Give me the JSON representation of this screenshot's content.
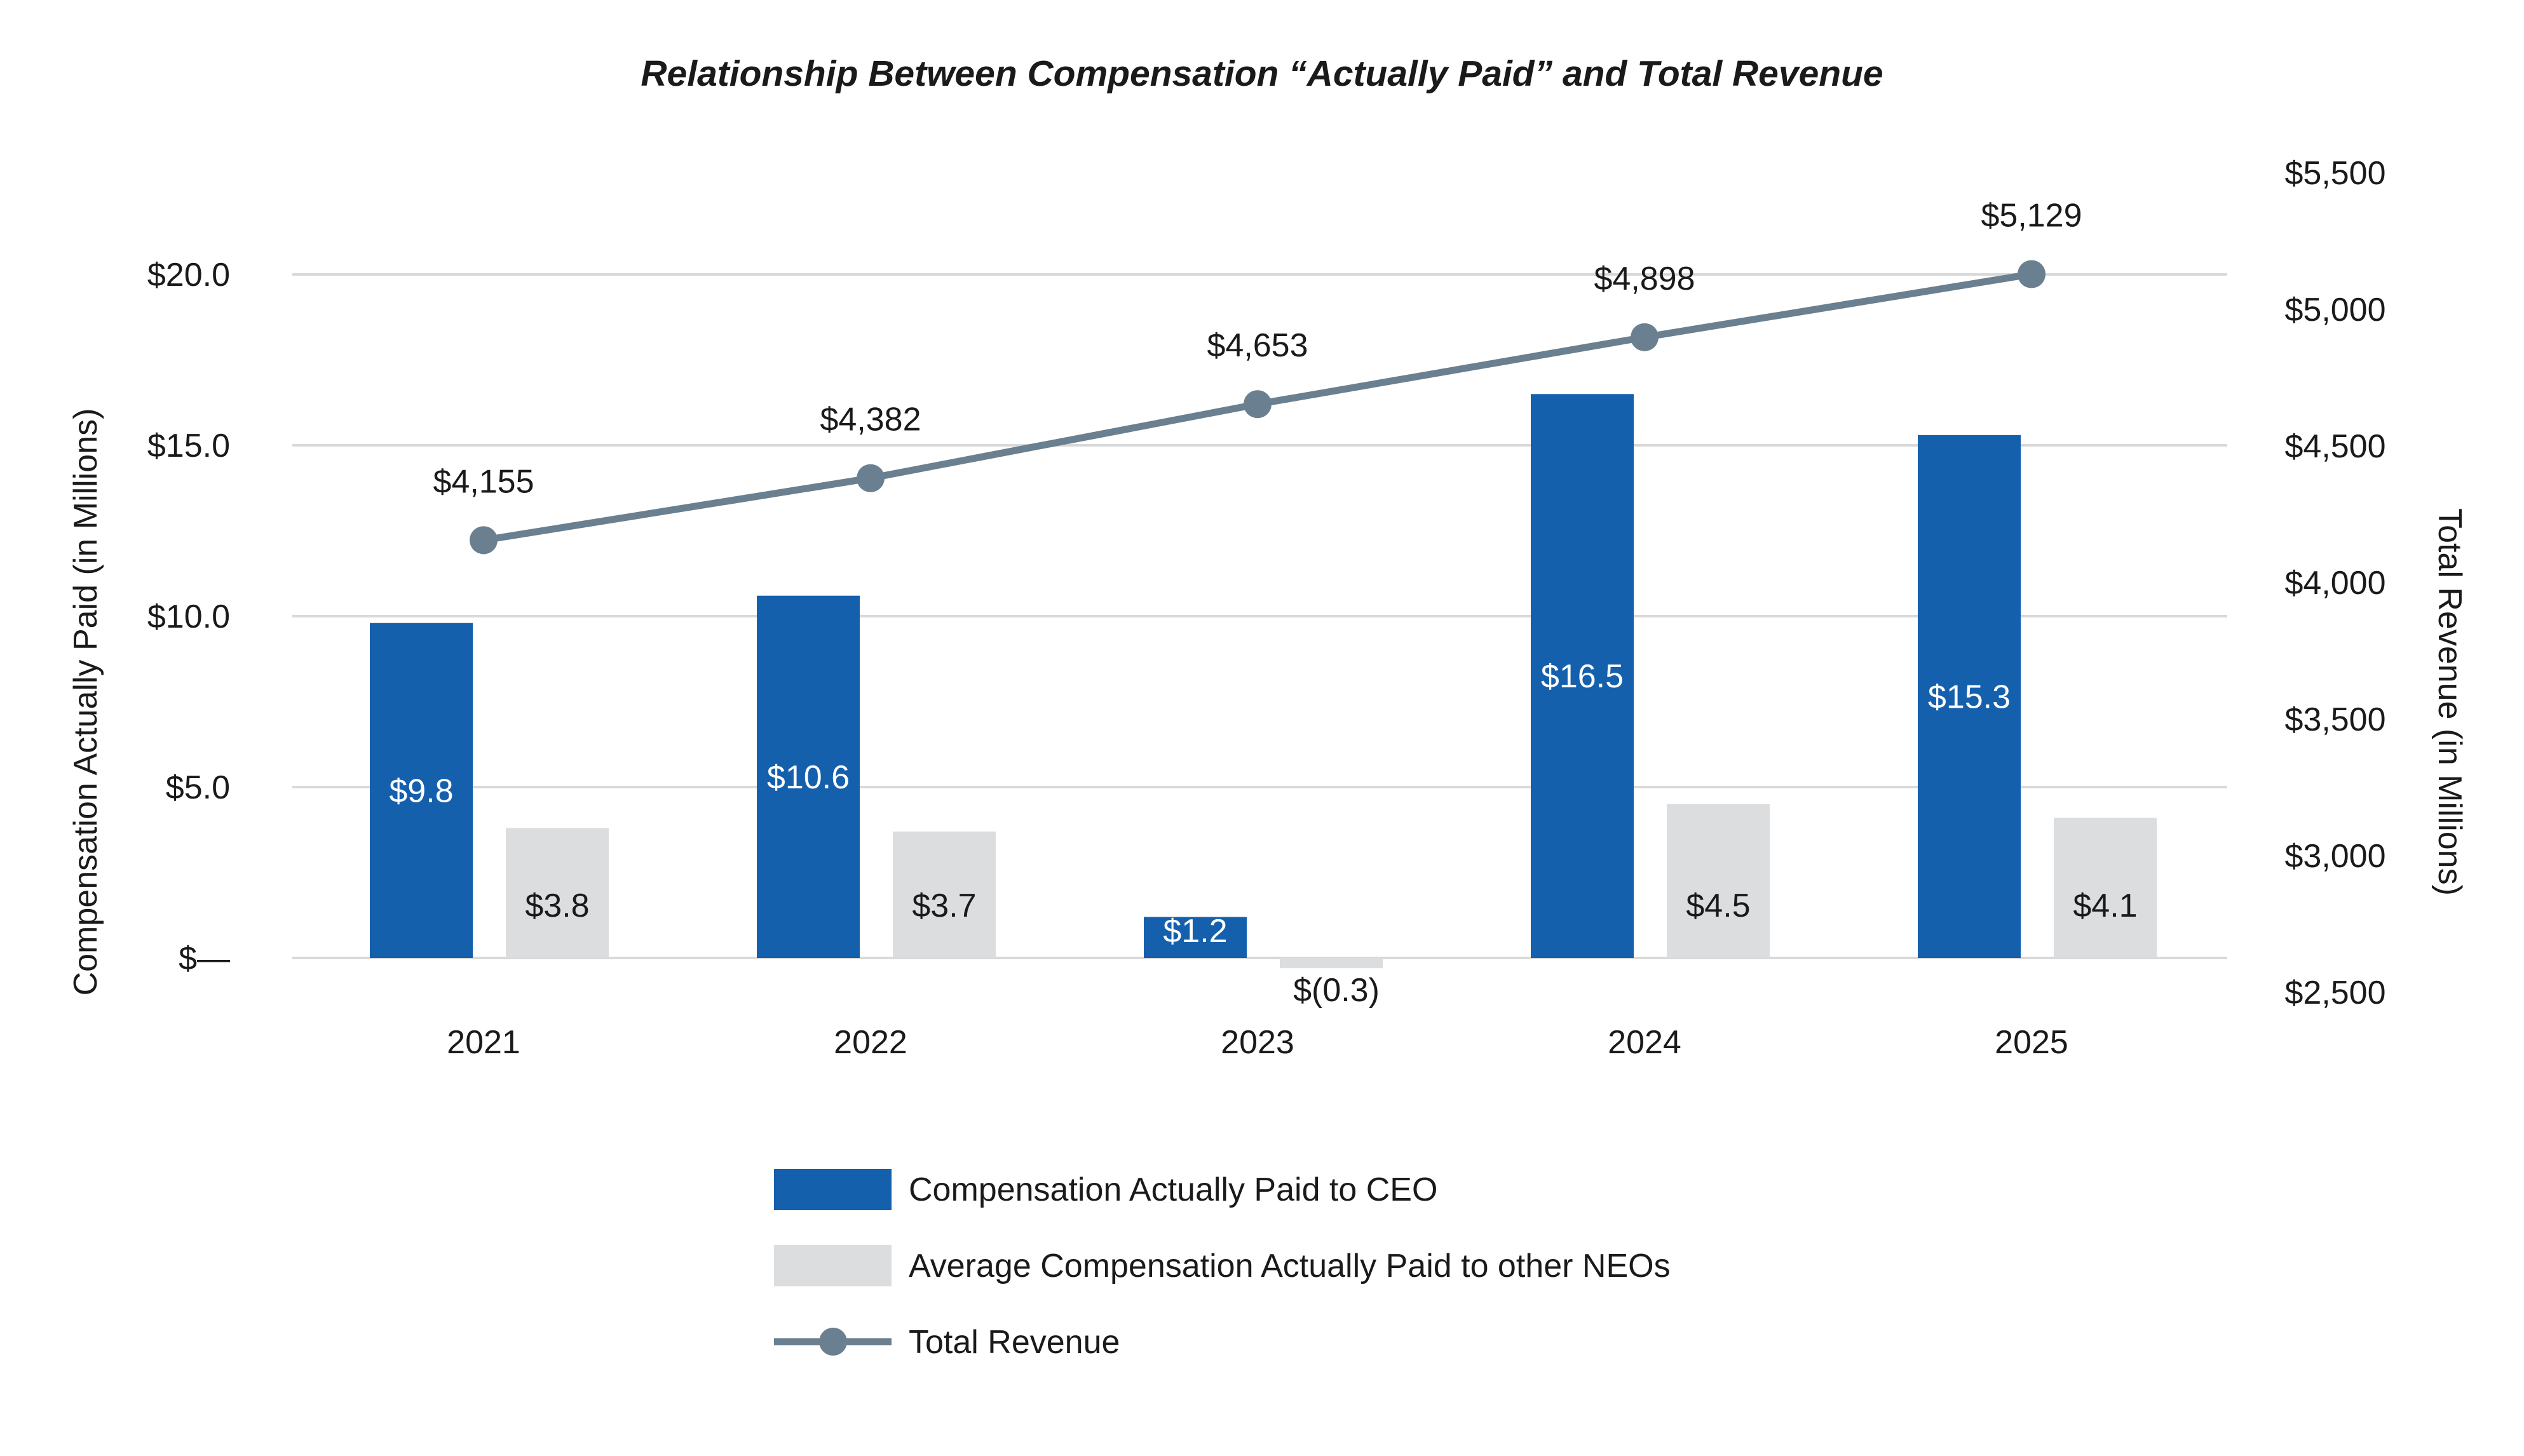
{
  "chart_data": {
    "type": "bar",
    "title": "Relationship Between Compensation “Actually Paid” and Total Revenue",
    "categories": [
      "2021",
      "2022",
      "2023",
      "2024",
      "2025"
    ],
    "ylabel": "Compensation Actually Paid (in Millions)",
    "ylabel_right": "Total Revenue (in Millions)",
    "ylim": [
      0,
      20
    ],
    "ylim_right": [
      2500,
      5500
    ],
    "yticks": [
      {
        "value": 0,
        "label": "$—"
      },
      {
        "value": 5,
        "label": "$5.0"
      },
      {
        "value": 10,
        "label": "$10.0"
      },
      {
        "value": 15,
        "label": "$15.0"
      },
      {
        "value": 20,
        "label": "$20.0"
      }
    ],
    "yticks_right": [
      {
        "value": 2500,
        "label": "$2,500"
      },
      {
        "value": 3000,
        "label": "$3,000"
      },
      {
        "value": 3500,
        "label": "$3,500"
      },
      {
        "value": 4000,
        "label": "$4,000"
      },
      {
        "value": 4500,
        "label": "$4,500"
      },
      {
        "value": 5000,
        "label": "$5,000"
      },
      {
        "value": 5500,
        "label": "$5,500"
      }
    ],
    "grid": true,
    "legend_position": "bottom",
    "series": [
      {
        "name": "Compensation Actually Paid to CEO",
        "type": "bar",
        "axis": "left",
        "color": "#1560ad",
        "values": [
          9.8,
          10.6,
          1.2,
          16.5,
          15.3
        ],
        "labels": [
          "$9.8",
          "$10.6",
          "$1.2",
          "$16.5",
          "$15.3"
        ]
      },
      {
        "name": "Average Compensation Actually Paid to other NEOs",
        "type": "bar",
        "axis": "left",
        "color": "#dcdddf",
        "values": [
          3.8,
          3.7,
          -0.3,
          4.5,
          4.1
        ],
        "labels": [
          "$3.8",
          "$3.7",
          "$(0.3)",
          "$4.5",
          "$4.1"
        ]
      },
      {
        "name": "Total Revenue",
        "type": "line",
        "axis": "right",
        "color": "#6a7f8f",
        "values": [
          4155,
          4382,
          4653,
          4898,
          5129
        ],
        "labels": [
          "$4,155",
          "$4,382",
          "$4,653",
          "$4,898",
          "$5,129"
        ]
      }
    ]
  }
}
